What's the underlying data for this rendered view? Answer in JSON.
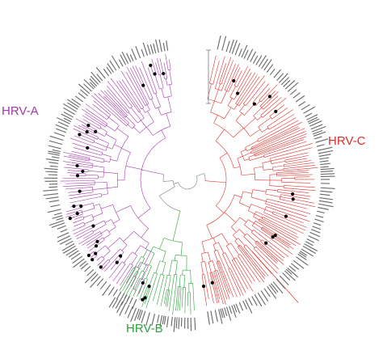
{
  "clades": [
    {
      "id": "a",
      "label": "HRV-A",
      "color": "#a63aa8"
    },
    {
      "id": "b",
      "label": "HRV-B",
      "color": "#2ba23b"
    },
    {
      "id": "c",
      "label": "HRV-C",
      "color": "#e0302a"
    }
  ],
  "colors": {
    "backbone": "#7a7a7a",
    "leaf_label": "#666666",
    "node_marker": "#000000"
  }
}
